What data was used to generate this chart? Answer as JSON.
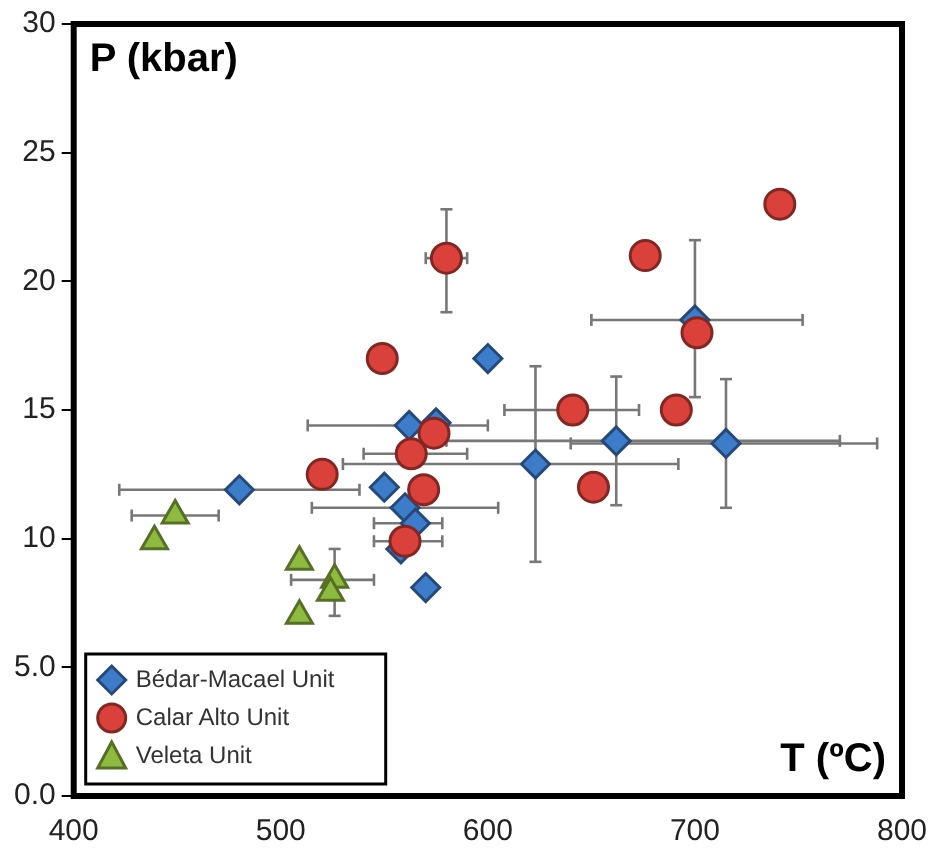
{
  "chart_data": {
    "type": "scatter",
    "xlabel": "T (ºC)",
    "ylabel": "P (kbar)",
    "xlim": [
      400,
      800
    ],
    "xticks": [
      400,
      500,
      600,
      700,
      800
    ],
    "ylim": [
      0,
      30
    ],
    "yticks": [
      {
        "value": 0,
        "label": "0.0"
      },
      {
        "value": 5,
        "label": "5.0"
      },
      10,
      15,
      20,
      25,
      30
    ],
    "grid": false,
    "legend": "bottom left",
    "series": [
      {
        "name": "Bédar-Macael Unit",
        "color": "#3d7cc9",
        "marker": "diamond",
        "x": [
          480,
          550,
          560,
          565,
          558,
          570,
          562,
          575,
          600,
          623,
          662,
          715,
          700
        ],
        "values": [
          11.9,
          12.0,
          11.2,
          10.6,
          9.6,
          8.1,
          14.4,
          14.5,
          17.0,
          12.9,
          13.8,
          13.7,
          18.5
        ],
        "xerrors": [
          [
            422,
            538
          ],
          null,
          [
            515,
            605
          ],
          [
            545,
            578
          ],
          null,
          null,
          [
            513,
            600
          ],
          null,
          null,
          [
            530,
            692
          ],
          [
            580,
            770
          ],
          [
            640,
            788
          ],
          [
            650,
            752
          ]
        ],
        "errors": [
          null,
          null,
          null,
          null,
          null,
          null,
          null,
          null,
          null,
          [
            9.1,
            16.7
          ],
          [
            11.3,
            16.3
          ],
          [
            11.2,
            16.2
          ],
          [
            15.5,
            21.6
          ]
        ]
      },
      {
        "name": "Calar Alto Unit",
        "color": "#d9413a",
        "marker": "circle",
        "x": [
          580,
          549,
          574,
          563,
          520,
          569,
          560,
          641,
          691,
          651,
          701,
          676,
          741
        ],
        "values": [
          20.9,
          17.0,
          14.1,
          13.3,
          12.5,
          11.9,
          9.9,
          15.0,
          15.0,
          12.0,
          18.0,
          21.0,
          23.0
        ],
        "xerrors": [
          [
            570,
            590
          ],
          null,
          null,
          [
            540,
            590
          ],
          null,
          null,
          [
            545,
            578
          ],
          [
            608,
            673
          ],
          null,
          null,
          null,
          null,
          null
        ],
        "errors": [
          [
            18.8,
            22.8
          ],
          null,
          null,
          null,
          null,
          null,
          null,
          null,
          null,
          null,
          null,
          null,
          null
        ]
      },
      {
        "name": "Veleta Unit",
        "color": "#8dba3f",
        "marker": "triangle",
        "x": [
          439,
          449,
          509,
          509,
          526,
          524
        ],
        "values": [
          9.9,
          10.9,
          9.1,
          7.0,
          8.4,
          7.9
        ],
        "xerrors": [
          null,
          [
            428,
            470
          ],
          null,
          null,
          [
            505,
            545
          ],
          null
        ],
        "errors": [
          null,
          null,
          null,
          null,
          [
            7.0,
            9.6
          ],
          null
        ]
      }
    ]
  }
}
